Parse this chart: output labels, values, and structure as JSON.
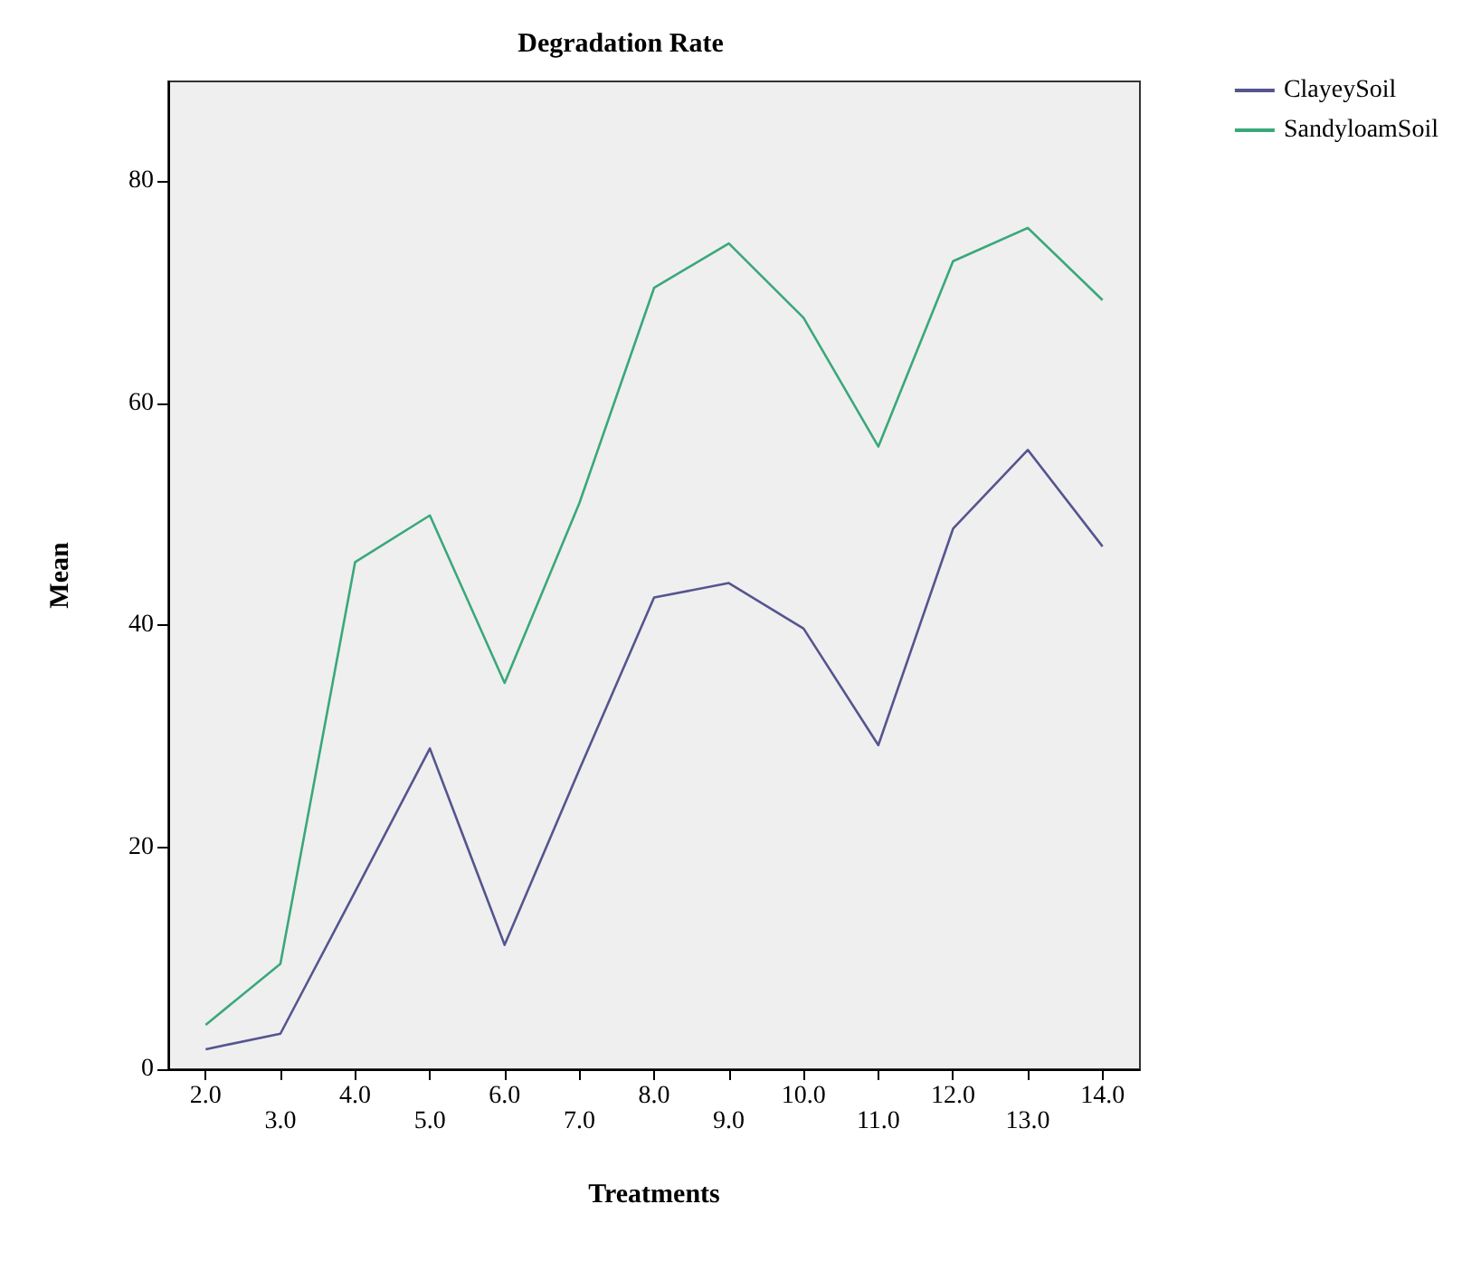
{
  "chart_data": {
    "type": "line",
    "title": "Degradation Rate",
    "xlabel": "Treatments",
    "ylabel": "Mean",
    "categories": [
      "2.0",
      "3.0",
      "4.0",
      "5.0",
      "6.0",
      "7.0",
      "8.0",
      "9.0",
      "10.0",
      "11.0",
      "12.0",
      "13.0",
      "14.0"
    ],
    "series": [
      {
        "name": "ClayeySoil",
        "color": "#55558f",
        "values": [
          1.8,
          3.2,
          16,
          28.9,
          11.2,
          27,
          42.5,
          43.8,
          39.7,
          29.2,
          48.7,
          55.8,
          47.1
        ]
      },
      {
        "name": "SandyloamSoil",
        "color": "#3aa87a",
        "values": [
          4,
          9.5,
          45.7,
          49.9,
          34.8,
          51,
          70.4,
          74.4,
          67.7,
          56.1,
          72.8,
          75.8,
          69.3
        ]
      }
    ],
    "ylim": [
      0,
      89
    ],
    "yticks": [
      0,
      20,
      40,
      60,
      80
    ],
    "grid": false,
    "legend": "top right",
    "marker": "none",
    "line_style": "solid"
  }
}
